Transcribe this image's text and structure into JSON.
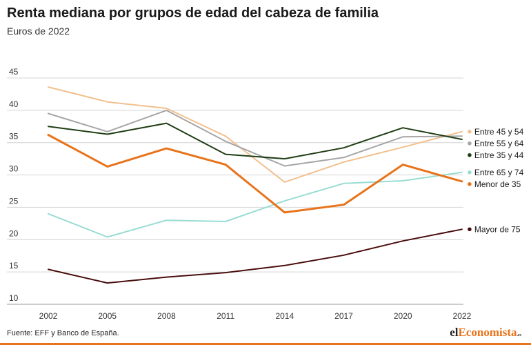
{
  "header": {
    "title": "Renta mediana por grupos de edad del cabeza de familia",
    "subtitle": "Euros de 2022"
  },
  "footer": {
    "source": "Fuente: EFF y Banco de España.",
    "logo_part1": "el",
    "logo_part2": "Economista",
    "logo_part3": ".es"
  },
  "chart_data": {
    "type": "line",
    "title": "Renta mediana por grupos de edad del cabeza de familia",
    "subtitle": "Euros de 2022",
    "xlabel": "",
    "ylabel": "",
    "x": [
      "2002",
      "2005",
      "2008",
      "2011",
      "2014",
      "2017",
      "2020",
      "2022"
    ],
    "yticks": [
      10,
      15,
      20,
      25,
      30,
      35,
      40,
      45
    ],
    "ylim": [
      10,
      45
    ],
    "grid": true,
    "legend_placement": "right",
    "series": [
      {
        "name": "Entre 45 y 54",
        "color": "#f2c08e",
        "width": 2,
        "values": [
          43.6,
          41.3,
          40.3,
          36.0,
          28.9,
          32.0,
          34.3,
          36.7
        ]
      },
      {
        "name": "Entre 55 y 64",
        "color": "#a6a6a6",
        "width": 2,
        "values": [
          39.5,
          36.7,
          40.0,
          35.2,
          31.4,
          32.7,
          35.9,
          36.0
        ]
      },
      {
        "name": "Entre 35 y 44",
        "color": "#1f3d14",
        "width": 2,
        "values": [
          37.5,
          36.3,
          38.0,
          33.2,
          32.5,
          34.2,
          37.3,
          35.5
        ]
      },
      {
        "name": "Entre 65 y 74",
        "color": "#99dcd2",
        "width": 2,
        "values": [
          24.0,
          20.4,
          23.0,
          22.8,
          26.0,
          28.7,
          29.1,
          30.4
        ]
      },
      {
        "name": "Menor de 35",
        "color": "#e8731a",
        "width": 3,
        "values": [
          36.2,
          31.3,
          34.1,
          31.6,
          24.2,
          25.4,
          31.6,
          29.0
        ]
      },
      {
        "name": "Mayor de 75",
        "color": "#4a0d0d",
        "width": 2,
        "values": [
          15.4,
          13.3,
          14.2,
          14.9,
          16.0,
          17.6,
          19.8,
          21.6
        ]
      }
    ]
  }
}
